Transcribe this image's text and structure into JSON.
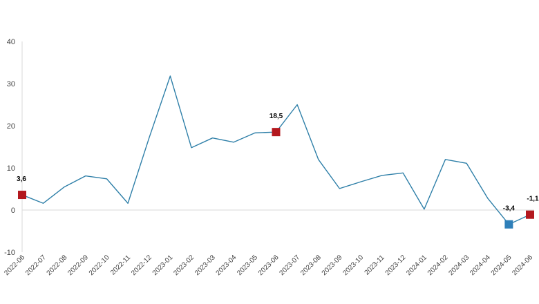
{
  "chart_data": {
    "type": "line",
    "title": "",
    "xlabel": "",
    "ylabel": "",
    "ylim": [
      -10,
      40
    ],
    "yticks": [
      "-10",
      "0",
      "10",
      "20",
      "30",
      "40"
    ],
    "grid": false,
    "categories": [
      "2022-06",
      "2022-07",
      "2022-08",
      "2022-09",
      "2022-10",
      "2022-11",
      "2022-12",
      "2023-01",
      "2023-02",
      "2023-03",
      "2023-04",
      "2023-05",
      "2023-06",
      "2023-07",
      "2023-08",
      "2023-09",
      "2023-10",
      "2023-11",
      "2023-12",
      "2024-01",
      "2024-02",
      "2024-03",
      "2024-04",
      "2024-05",
      "2024-06"
    ],
    "series": [
      {
        "color": "#2e7fa8",
        "values": [
          3.6,
          1.6,
          5.5,
          8.1,
          7.4,
          1.6,
          17.1,
          31.8,
          14.8,
          17.1,
          16.1,
          18.3,
          18.5,
          25.0,
          12.0,
          5.1,
          6.7,
          8.2,
          8.8,
          0.2,
          12.0,
          11.1,
          2.8,
          -3.4,
          -1.1
        ]
      }
    ],
    "highlights": [
      {
        "index": 0,
        "label": "3,6",
        "color": "#b3181e"
      },
      {
        "index": 12,
        "label": "18,5",
        "color": "#b3181e"
      },
      {
        "index": 23,
        "label": "-3,4",
        "color": "#2e7fb9"
      },
      {
        "index": 24,
        "label": "-1,1",
        "color": "#b3181e"
      }
    ]
  }
}
